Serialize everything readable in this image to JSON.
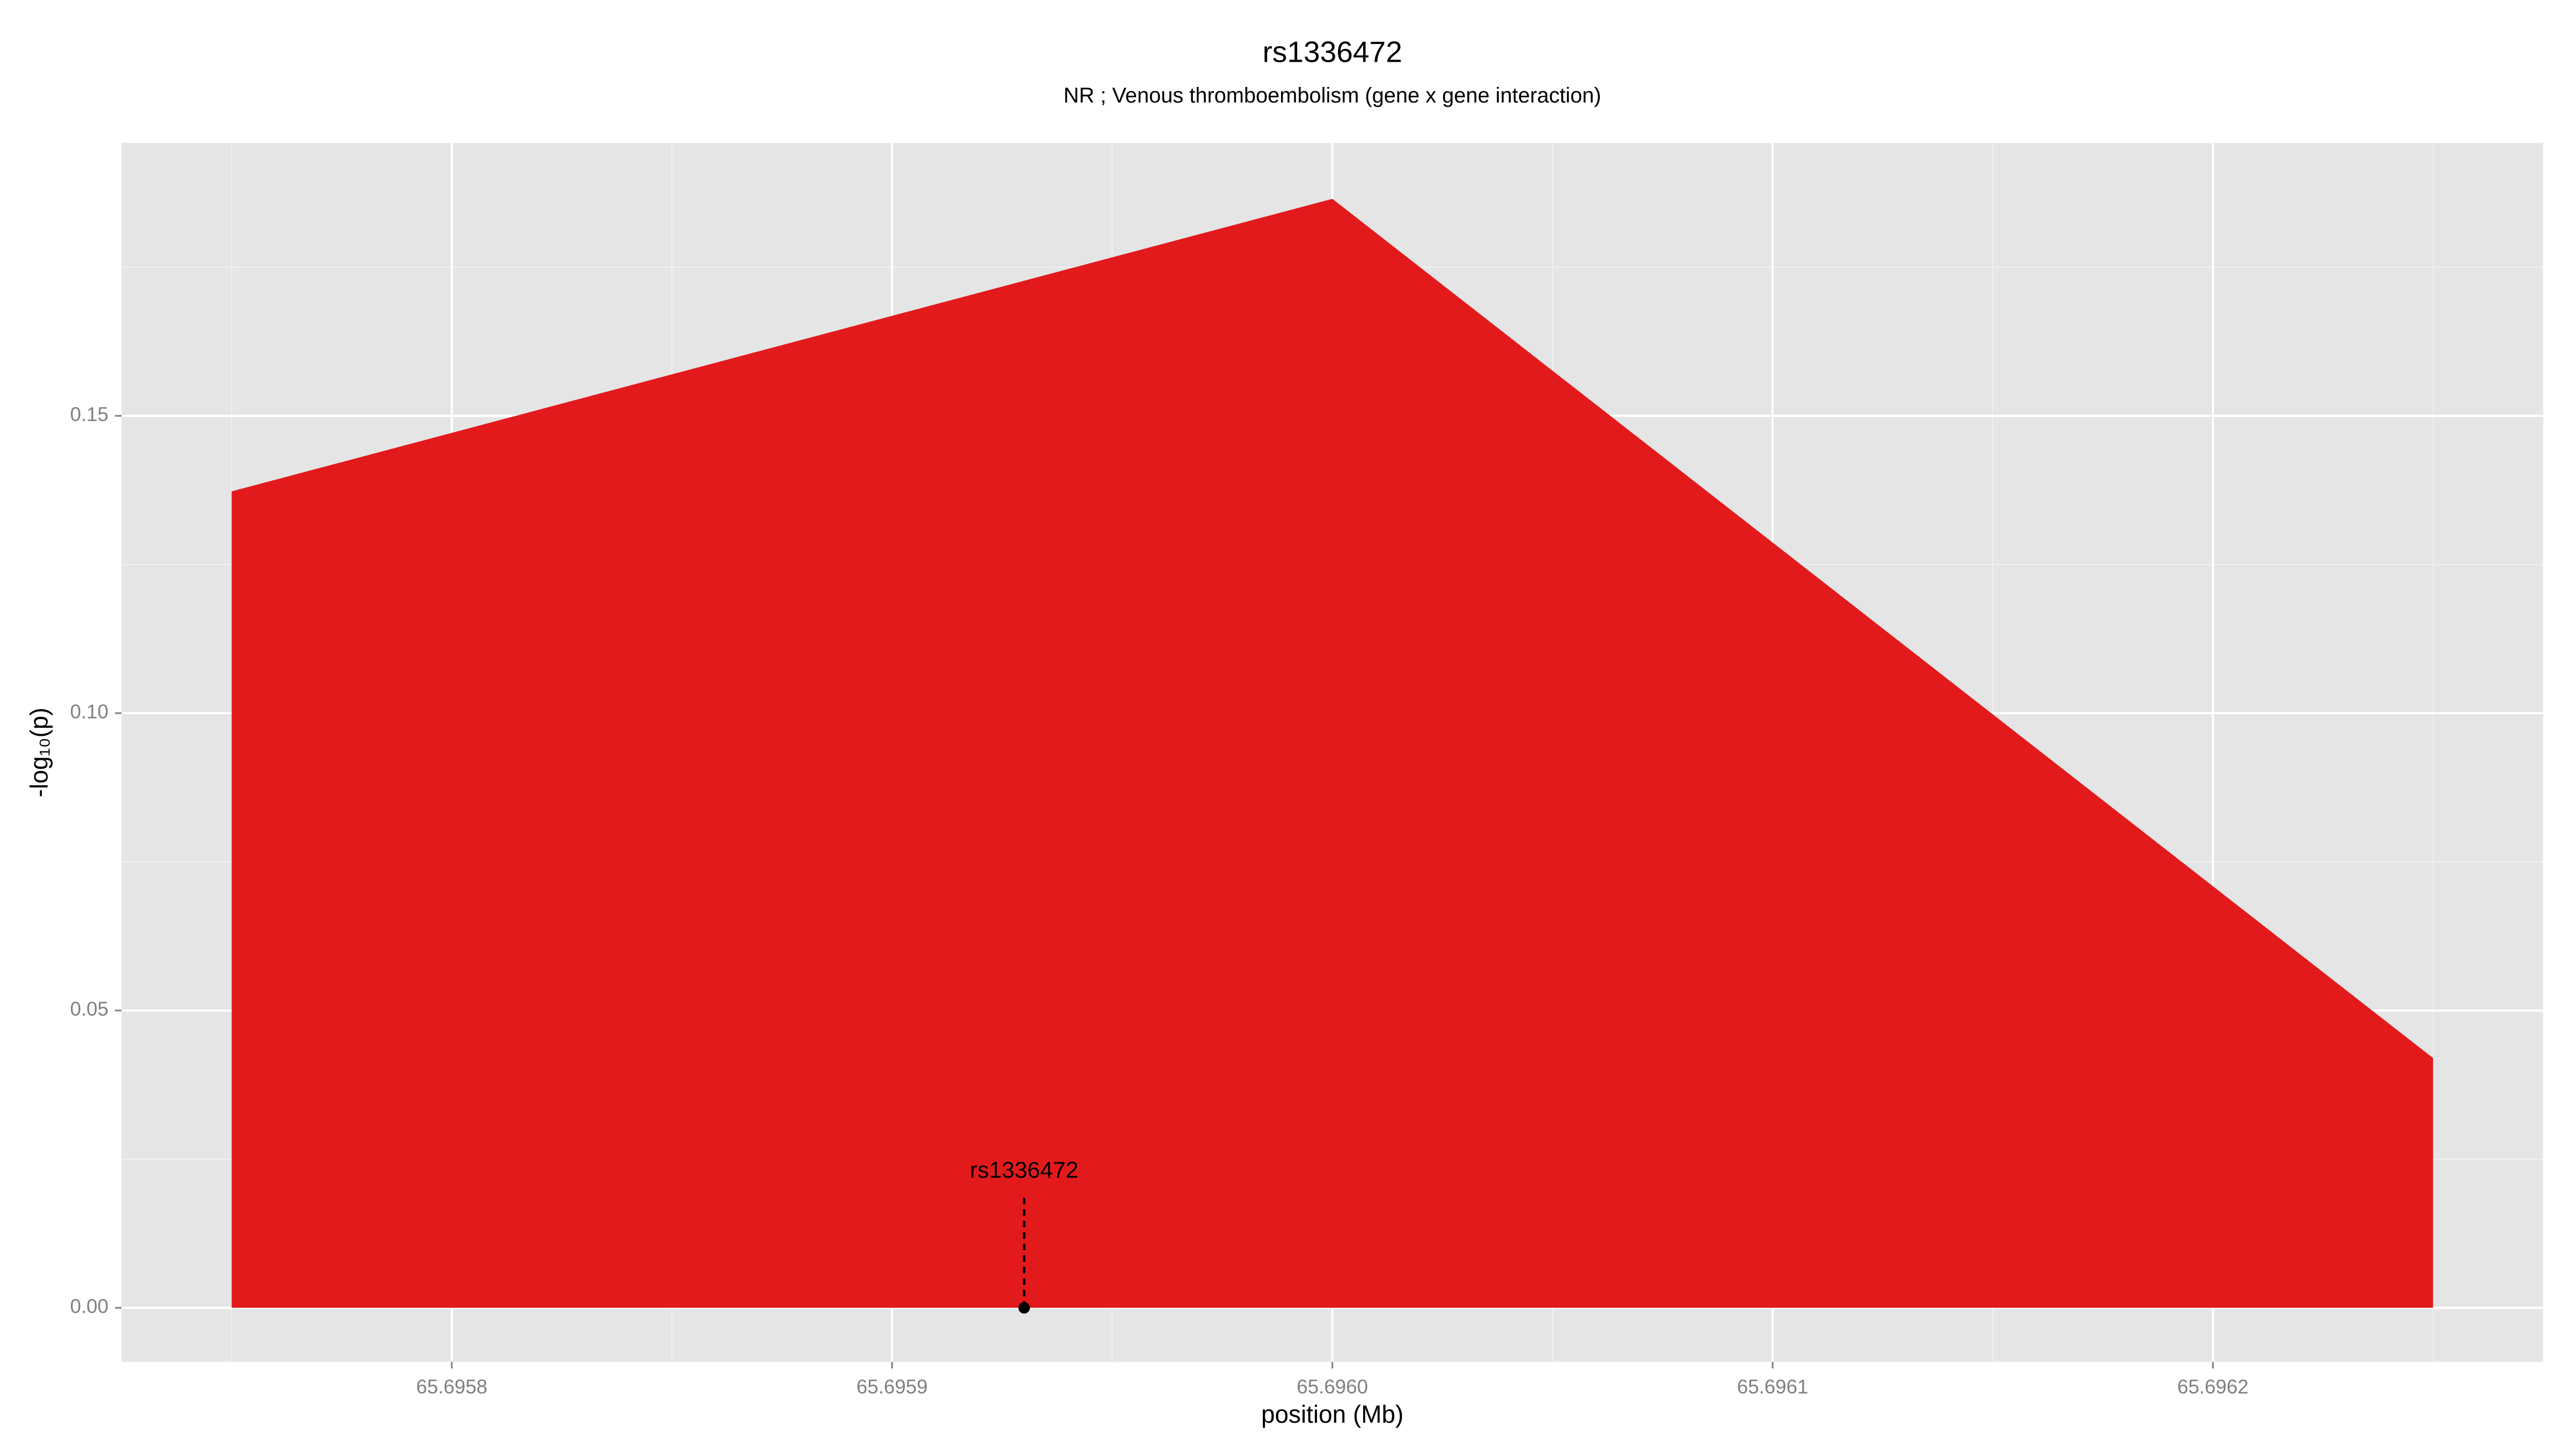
{
  "chart_data": {
    "type": "area",
    "title": "rs1336472",
    "subtitle": "NR ; Venous thromboembolism (gene x gene interaction)",
    "xlabel": "position (Mb)",
    "ylabel": "-log₁₀(p)",
    "x": [
      65.69575,
      65.696,
      65.69625
    ],
    "values": [
      0.1373,
      0.1865,
      0.042
    ],
    "color": "#e31a1c",
    "xlim": [
      65.695725,
      65.696275
    ],
    "ylim": [
      -0.0091,
      0.1959
    ],
    "xticks": [
      65.6958,
      65.6959,
      {
        "value": 65.696,
        "label": "65.6960"
      },
      65.6961,
      65.6962
    ],
    "yticks": [
      {
        "value": 0,
        "label": "0.00"
      },
      {
        "value": 0.05,
        "label": "0.05"
      },
      {
        "value": 0.1,
        "label": "0.10"
      },
      {
        "value": 0.15,
        "label": "0.15"
      }
    ],
    "grid": true,
    "annotations": [
      {
        "label": "rs1336472",
        "x": 65.69593,
        "y": 0,
        "label_y": 0.0185
      }
    ]
  }
}
